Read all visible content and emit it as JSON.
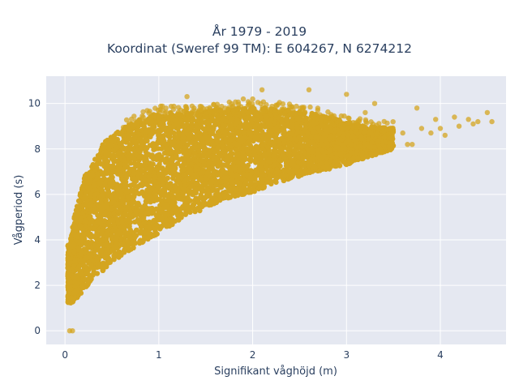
{
  "chart_data": {
    "type": "scatter",
    "title_line1": "År 1979 - 2019",
    "title_line2": "Koordinat (Sweref 99 TM): E 604267, N 6274212",
    "xlabel": "Signifikant våghöjd (m)",
    "ylabel": "Vågperiod (s)",
    "xlim": [
      -0.2,
      4.7
    ],
    "ylim": [
      -0.6,
      11.2
    ],
    "xticks": [
      0,
      1,
      2,
      3,
      4
    ],
    "yticks": [
      0,
      2,
      4,
      6,
      8,
      10
    ],
    "grid": true,
    "marker_color": "#D4A520",
    "background_color": "#E5E8F1",
    "points_note_excluded": null,
    "envelope": [
      {
        "x": 0.05,
        "ymin": 1.2,
        "ymax": 3.8
      },
      {
        "x": 0.1,
        "ymin": 1.3,
        "ymax": 5.0
      },
      {
        "x": 0.2,
        "ymin": 1.8,
        "ymax": 6.8
      },
      {
        "x": 0.3,
        "ymin": 2.3,
        "ymax": 7.4
      },
      {
        "x": 0.4,
        "ymin": 2.6,
        "ymax": 8.2
      },
      {
        "x": 0.5,
        "ymin": 3.0,
        "ymax": 8.6
      },
      {
        "x": 0.6,
        "ymin": 3.3,
        "ymax": 8.9
      },
      {
        "x": 0.8,
        "ymin": 3.8,
        "ymax": 9.3
      },
      {
        "x": 1.0,
        "ymin": 4.3,
        "ymax": 9.6
      },
      {
        "x": 1.2,
        "ymin": 4.8,
        "ymax": 9.6
      },
      {
        "x": 1.4,
        "ymin": 5.2,
        "ymax": 9.6
      },
      {
        "x": 1.6,
        "ymin": 5.6,
        "ymax": 9.7
      },
      {
        "x": 1.8,
        "ymin": 5.9,
        "ymax": 9.8
      },
      {
        "x": 2.0,
        "ymin": 6.1,
        "ymax": 9.8
      },
      {
        "x": 2.2,
        "ymin": 6.4,
        "ymax": 9.8
      },
      {
        "x": 2.4,
        "ymin": 6.7,
        "ymax": 9.7
      },
      {
        "x": 2.6,
        "ymin": 6.9,
        "ymax": 9.6
      },
      {
        "x": 2.8,
        "ymin": 7.1,
        "ymax": 9.4
      },
      {
        "x": 3.0,
        "ymin": 7.3,
        "ymax": 9.2
      },
      {
        "x": 3.2,
        "ymin": 7.6,
        "ymax": 9.0
      },
      {
        "x": 3.5,
        "ymin": 8.0,
        "ymax": 8.9
      }
    ],
    "outliers": [
      {
        "x": 0.05,
        "y": 0.0
      },
      {
        "x": 0.08,
        "y": 0.0
      },
      {
        "x": 3.8,
        "y": 8.9
      },
      {
        "x": 3.9,
        "y": 8.7
      },
      {
        "x": 4.0,
        "y": 8.9
      },
      {
        "x": 4.05,
        "y": 8.6
      },
      {
        "x": 4.15,
        "y": 9.4
      },
      {
        "x": 4.2,
        "y": 9.0
      },
      {
        "x": 4.3,
        "y": 9.3
      },
      {
        "x": 4.35,
        "y": 9.1
      },
      {
        "x": 4.4,
        "y": 9.2
      },
      {
        "x": 4.5,
        "y": 9.6
      },
      {
        "x": 4.55,
        "y": 9.2
      },
      {
        "x": 3.7,
        "y": 8.2
      },
      {
        "x": 3.65,
        "y": 8.2
      },
      {
        "x": 3.75,
        "y": 9.8
      },
      {
        "x": 3.6,
        "y": 8.7
      },
      {
        "x": 3.95,
        "y": 9.3
      },
      {
        "x": 2.1,
        "y": 10.6
      },
      {
        "x": 2.6,
        "y": 10.6
      },
      {
        "x": 2.0,
        "y": 10.2
      },
      {
        "x": 1.9,
        "y": 10.2
      },
      {
        "x": 1.3,
        "y": 10.3
      },
      {
        "x": 3.0,
        "y": 10.4
      },
      {
        "x": 3.2,
        "y": 9.6
      },
      {
        "x": 3.3,
        "y": 10.0
      }
    ]
  }
}
